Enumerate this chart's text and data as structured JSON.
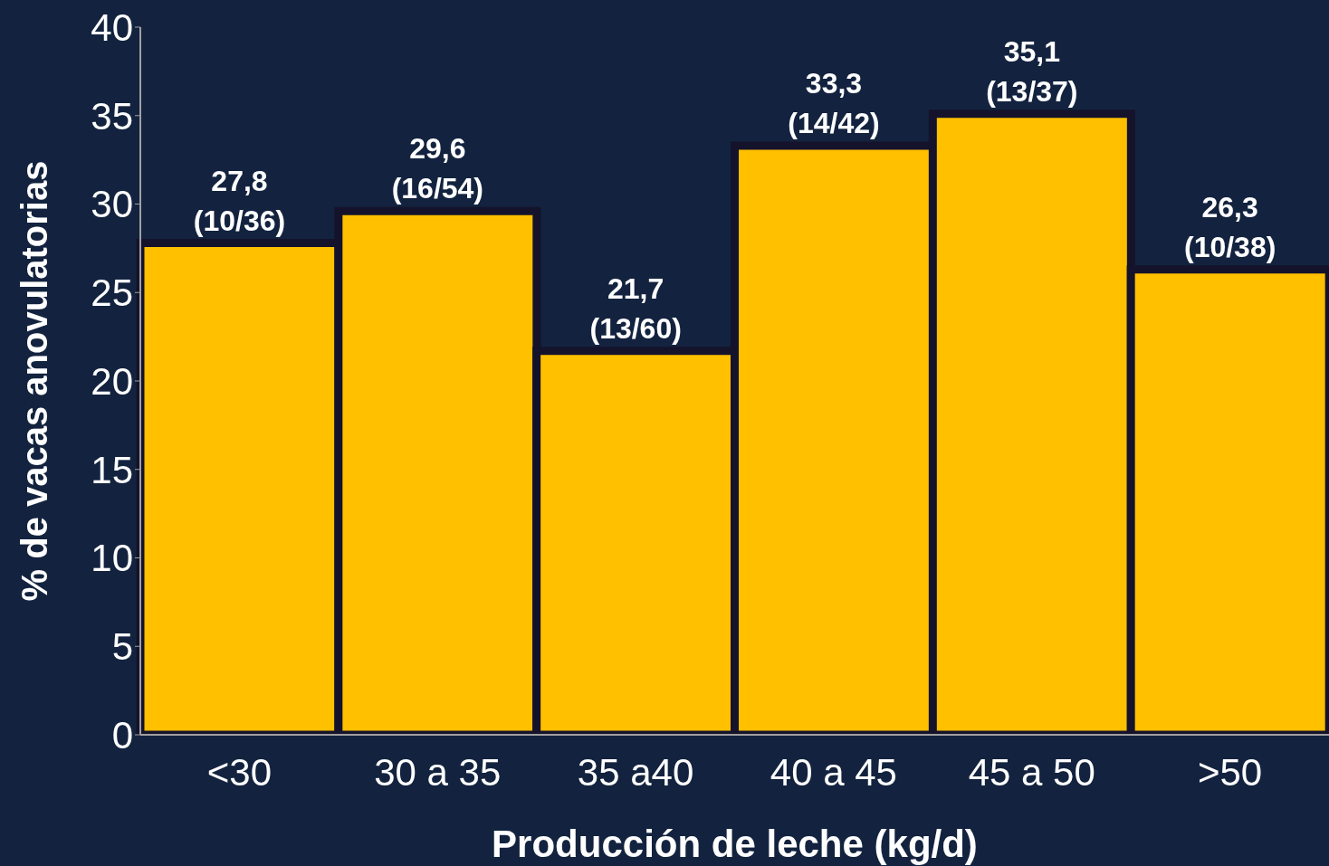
{
  "chart_data": {
    "type": "bar",
    "xlabel": "Producción de leche (kg/d)",
    "ylabel": "% de vacas anovulatorias",
    "categories": [
      "<30",
      "30 a 35",
      "35 a40",
      "40 a 45",
      "45 a 50",
      ">50"
    ],
    "values": [
      27.8,
      29.6,
      21.7,
      33.3,
      35.1,
      26.3
    ],
    "value_labels": [
      "27,8\n(10/36)",
      "29,6\n(16/54)",
      "21,7\n(13/60)",
      "33,3\n(14/42)",
      "35,1\n(13/37)",
      "26,3\n(10/38)"
    ],
    "color": "#ffc000",
    "ylim": [
      0,
      40
    ],
    "yticks": [
      0,
      5,
      10,
      15,
      20,
      25,
      30,
      35,
      40
    ],
    "grid": false,
    "legend": false
  }
}
